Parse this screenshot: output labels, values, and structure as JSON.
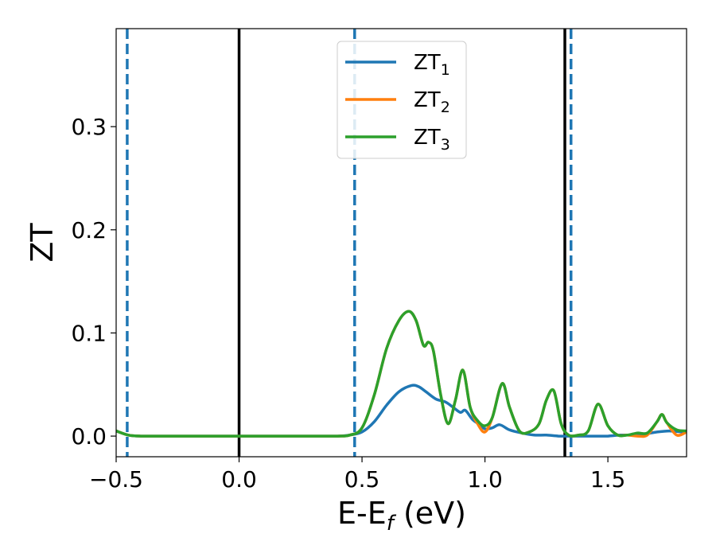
{
  "chart_data": {
    "type": "line",
    "xlabel": {
      "main": "E-E",
      "sub": "f",
      "rest": " (eV)"
    },
    "ylabel": "ZT",
    "xlim": [
      -0.5,
      1.82
    ],
    "ylim": [
      -0.02,
      0.395
    ],
    "x_ticks": [
      {
        "value": -0.5,
        "label": "−0.5"
      },
      {
        "value": 0.0,
        "label": "0.0"
      },
      {
        "value": 0.5,
        "label": "0.5"
      },
      {
        "value": 1.0,
        "label": "1.0"
      },
      {
        "value": 1.5,
        "label": "1.5"
      }
    ],
    "y_ticks": [
      {
        "value": 0.0,
        "label": "0.0"
      },
      {
        "value": 0.1,
        "label": "0.1"
      },
      {
        "value": 0.2,
        "label": "0.2"
      },
      {
        "value": 0.3,
        "label": "0.3"
      }
    ],
    "grid": false,
    "legend_position": "top-center",
    "vlines": [
      {
        "x": -0.455,
        "style": "dashed",
        "color": "#1f77b4"
      },
      {
        "x": 0.0,
        "style": "solid",
        "color": "#000000"
      },
      {
        "x": 0.47,
        "style": "dashed",
        "color": "#1f77b4"
      },
      {
        "x": 1.325,
        "style": "solid",
        "color": "#000000"
      },
      {
        "x": 1.35,
        "style": "dashed",
        "color": "#1f77b4"
      }
    ],
    "series": [
      {
        "name": "ZT",
        "sub": "1",
        "color": "#1f77b4",
        "x": [
          -0.5,
          -0.45,
          -0.4,
          -0.3,
          -0.2,
          -0.1,
          0.0,
          0.1,
          0.2,
          0.3,
          0.4,
          0.45,
          0.5,
          0.55,
          0.6,
          0.65,
          0.7,
          0.73,
          0.76,
          0.8,
          0.84,
          0.87,
          0.9,
          0.92,
          0.95,
          0.98,
          1.0,
          1.03,
          1.06,
          1.1,
          1.15,
          1.2,
          1.25,
          1.3,
          1.35,
          1.4,
          1.45,
          1.5,
          1.55,
          1.6,
          1.65,
          1.7,
          1.75,
          1.8,
          1.82
        ],
        "y": [
          0.005,
          0.001,
          0.0,
          0.0,
          0.0,
          0.0,
          0.0,
          0.0,
          0.0,
          0.0,
          0.0,
          0.001,
          0.004,
          0.014,
          0.03,
          0.043,
          0.049,
          0.048,
          0.043,
          0.036,
          0.033,
          0.028,
          0.023,
          0.025,
          0.016,
          0.011,
          0.007,
          0.008,
          0.011,
          0.006,
          0.003,
          0.001,
          0.001,
          0.0,
          0.0,
          0.0,
          0.0,
          0.0,
          0.001,
          0.001,
          0.002,
          0.004,
          0.005,
          0.004,
          0.004
        ]
      },
      {
        "name": "ZT",
        "sub": "2",
        "color": "#ff7f0e",
        "x": [
          -0.5,
          -0.45,
          -0.4,
          -0.3,
          -0.2,
          -0.1,
          0.0,
          0.1,
          0.2,
          0.3,
          0.4,
          0.45,
          0.5,
          0.55,
          0.6,
          0.65,
          0.69,
          0.72,
          0.75,
          0.77,
          0.79,
          0.82,
          0.85,
          0.88,
          0.91,
          0.94,
          0.97,
          1.0,
          1.03,
          1.07,
          1.1,
          1.14,
          1.18,
          1.22,
          1.25,
          1.28,
          1.31,
          1.34,
          1.38,
          1.42,
          1.46,
          1.5,
          1.54,
          1.58,
          1.62,
          1.66,
          1.7,
          1.72,
          1.74,
          1.78,
          1.82
        ],
        "y": [
          0.005,
          0.001,
          0.0,
          0.0,
          0.0,
          0.0,
          0.0,
          0.0,
          0.0,
          0.0,
          0.0,
          0.001,
          0.008,
          0.04,
          0.085,
          0.112,
          0.121,
          0.112,
          0.088,
          0.091,
          0.083,
          0.04,
          0.012,
          0.035,
          0.064,
          0.028,
          0.012,
          0.004,
          0.018,
          0.051,
          0.028,
          0.005,
          0.004,
          0.012,
          0.035,
          0.044,
          0.012,
          0.001,
          0.001,
          0.005,
          0.031,
          0.01,
          0.001,
          0.001,
          0.0,
          0.001,
          0.014,
          0.021,
          0.013,
          0.001,
          0.004
        ]
      },
      {
        "name": "ZT",
        "sub": "3",
        "color": "#2ca02c",
        "x": [
          -0.5,
          -0.45,
          -0.4,
          -0.3,
          -0.2,
          -0.1,
          0.0,
          0.1,
          0.2,
          0.3,
          0.4,
          0.45,
          0.5,
          0.55,
          0.6,
          0.65,
          0.69,
          0.72,
          0.75,
          0.77,
          0.79,
          0.82,
          0.85,
          0.88,
          0.91,
          0.94,
          0.97,
          1.0,
          1.03,
          1.07,
          1.1,
          1.14,
          1.18,
          1.22,
          1.25,
          1.28,
          1.31,
          1.34,
          1.38,
          1.42,
          1.46,
          1.5,
          1.54,
          1.58,
          1.62,
          1.66,
          1.7,
          1.72,
          1.74,
          1.78,
          1.82
        ],
        "y": [
          0.005,
          0.001,
          0.0,
          0.0,
          0.0,
          0.0,
          0.0,
          0.0,
          0.0,
          0.0,
          0.0,
          0.001,
          0.008,
          0.04,
          0.085,
          0.112,
          0.121,
          0.112,
          0.088,
          0.091,
          0.083,
          0.04,
          0.012,
          0.035,
          0.064,
          0.028,
          0.015,
          0.01,
          0.018,
          0.051,
          0.028,
          0.005,
          0.004,
          0.012,
          0.035,
          0.044,
          0.012,
          0.001,
          0.001,
          0.005,
          0.031,
          0.01,
          0.001,
          0.001,
          0.003,
          0.003,
          0.014,
          0.021,
          0.013,
          0.006,
          0.005
        ]
      }
    ]
  }
}
